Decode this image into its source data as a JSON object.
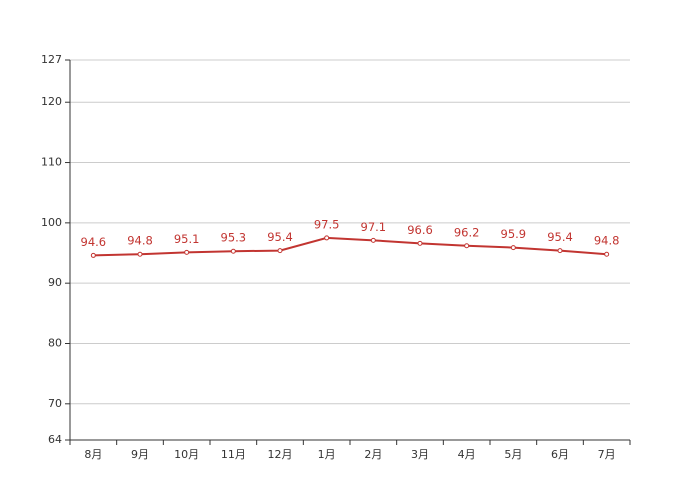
{
  "chart_data": {
    "type": "line",
    "categories": [
      "8月",
      "9月",
      "10月",
      "11月",
      "12月",
      "1月",
      "2月",
      "3月",
      "4月",
      "5月",
      "6月",
      "7月"
    ],
    "values": [
      94.6,
      94.8,
      95.1,
      95.3,
      95.4,
      97.5,
      97.1,
      96.6,
      96.2,
      95.9,
      95.4,
      94.8
    ],
    "color": "#c23531",
    "ylim": [
      64,
      127
    ],
    "yticks": [
      64,
      70,
      80,
      90,
      100,
      110,
      120,
      127
    ],
    "grid": true
  }
}
